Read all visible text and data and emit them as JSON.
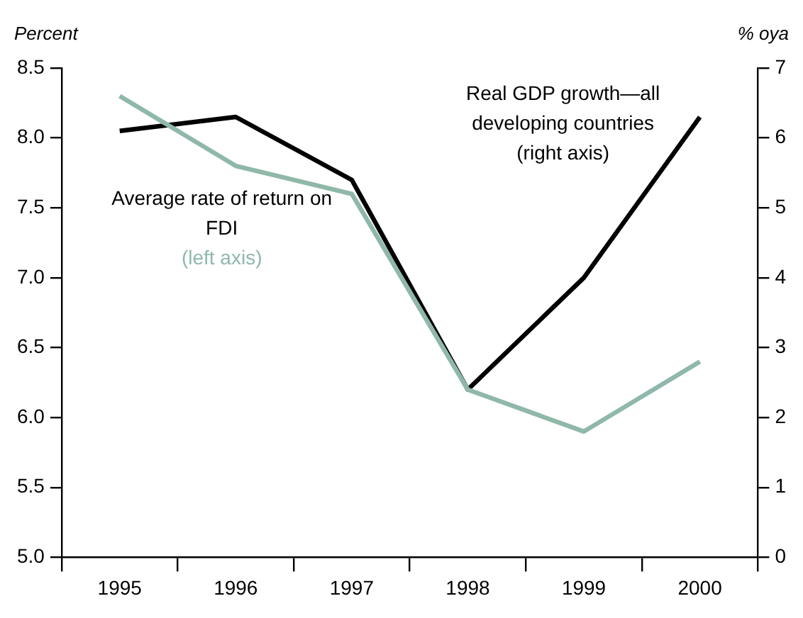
{
  "chart_data": {
    "type": "line",
    "ylabel": "Percent",
    "y2label": "% oya",
    "categories": [
      "1995",
      "1996",
      "1997",
      "1998",
      "1999",
      "2000"
    ],
    "series": [
      {
        "name": "Average rate of return on FDI",
        "color": "#8fb8a8",
        "values": [
          8.3,
          7.8,
          7.6,
          6.2,
          5.9,
          6.4
        ]
      },
      {
        "name": "Real GDP growth—all developing countries",
        "color": "#000000",
        "axis": "y2",
        "values": [
          6.1,
          6.3,
          5.4,
          2.4,
          4.0,
          6.3
        ]
      }
    ],
    "annotations": [
      "(left axis)",
      "(right axis)"
    ],
    "ylim": [
      5.0,
      8.5
    ],
    "yticks": [
      {
        "value": 5,
        "label": "5.0"
      },
      {
        "value": 5.5,
        "label": "5.5"
      },
      {
        "value": 6,
        "label": "6.0"
      },
      {
        "value": 6.5,
        "label": "6.5"
      },
      {
        "value": 7,
        "label": "7.0"
      },
      {
        "value": 7.5,
        "label": "7.5"
      },
      {
        "value": 8,
        "label": "8.0"
      },
      {
        "value": 8.5,
        "label": "8.5"
      }
    ],
    "y2lim": [
      0,
      7
    ],
    "y2ticks": [
      0,
      1,
      2,
      3,
      4,
      5,
      6,
      7
    ],
    "grid": false,
    "legend": false,
    "marker": "none",
    "line_style": "solid"
  }
}
